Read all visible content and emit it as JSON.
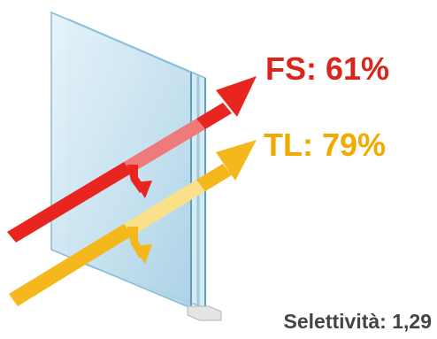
{
  "labels": {
    "solar_factor": "FS: 61%",
    "light_transmission": "TL: 79%",
    "selectivity": "Selettività: 1,29"
  },
  "colors": {
    "solar_arrow": "#e8251e",
    "solar_text": "#d9261c",
    "light_arrow": "#f5b81c",
    "light_text": "#f2a900",
    "glass_front": "#cfe6f2",
    "glass_edge": "#7fb7d3",
    "glass_shadow": "#9cc8de"
  },
  "icons": {
    "pane": "glass-pane-illustration",
    "solar_arrow": "solar-factor-arrow",
    "light_arrow": "light-transmission-arrow"
  }
}
